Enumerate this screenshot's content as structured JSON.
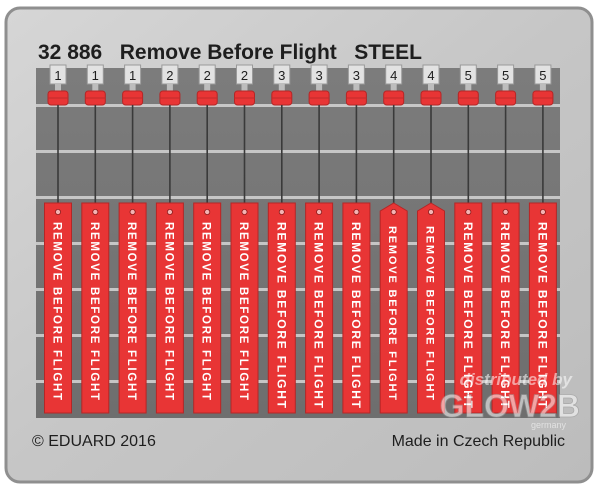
{
  "fret": {
    "title": "32 886   Remove Before Flight   STEEL",
    "copyright": "© EDUARD 2016",
    "origin": "Made in Czech Republic"
  },
  "watermark": {
    "line1": "distributed by",
    "brand": "GLOW2B",
    "sub": "germany"
  },
  "colors": {
    "plate": "#c9c9c9",
    "plate_edge": "#8f8f8f",
    "gap": "#767676",
    "tag_red": "#e83535",
    "tag_text": "#ffffff",
    "ink": "#1e1e1e"
  },
  "tags": [
    {
      "number": "1",
      "text": "REMOVE BEFORE FLIGHT",
      "style": "single"
    },
    {
      "number": "1",
      "text": "REMOVE BEFORE FLIGHT",
      "style": "single"
    },
    {
      "number": "1",
      "text": "REMOVE BEFORE FLIGHT",
      "style": "single"
    },
    {
      "number": "2",
      "text": "REMOVE BEFORE FLIGHT",
      "style": "single"
    },
    {
      "number": "2",
      "text": "REMOVE BEFORE FLIGHT",
      "style": "single"
    },
    {
      "number": "2",
      "text": "REMOVE BEFORE FLIGHT",
      "style": "single"
    },
    {
      "number": "3",
      "text": "REMOVE BEFORE FLIGHT",
      "style": "stacked"
    },
    {
      "number": "3",
      "text": "REMOVE BEFORE FLIGHT",
      "style": "stacked"
    },
    {
      "number": "3",
      "text": "REMOVE BEFORE FLIGHT",
      "style": "stacked"
    },
    {
      "number": "4",
      "text": "REMOVE BEFORE FLIGHT",
      "style": "single-pointed"
    },
    {
      "number": "4",
      "text": "REMOVE BEFORE FLIGHT",
      "style": "single-pointed"
    },
    {
      "number": "5",
      "text": "REMOVE BEFORE FLIGHT",
      "style": "stacked"
    },
    {
      "number": "5",
      "text": "REMOVE BEFORE FLIGHT",
      "style": "stacked"
    },
    {
      "number": "5",
      "text": "REMOVE BEFORE FLIGHT",
      "style": "stacked"
    }
  ]
}
